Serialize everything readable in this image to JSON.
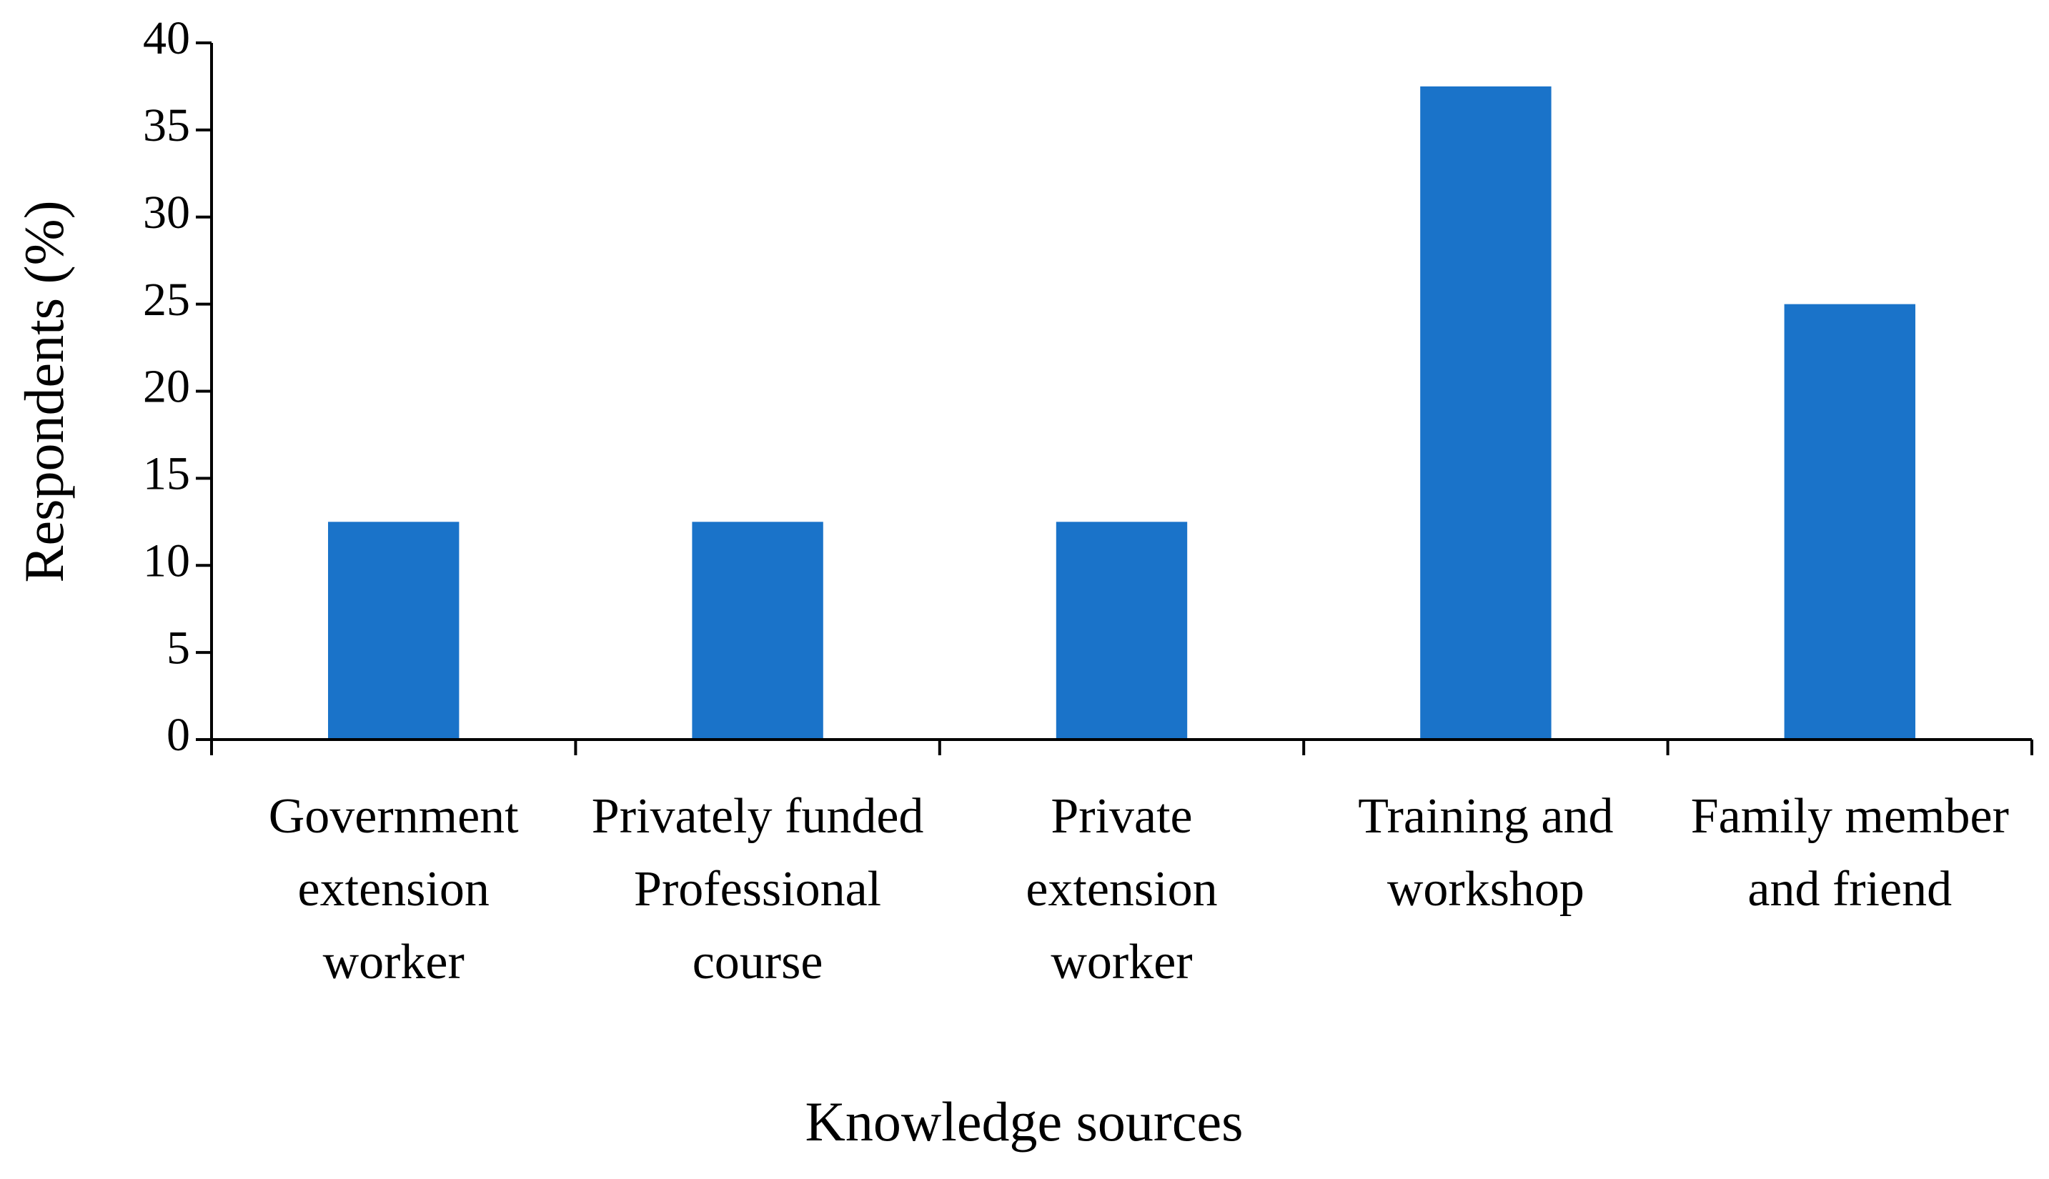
{
  "chart_data": {
    "type": "bar",
    "x_label": "Knowledge sources",
    "y_label": "Respondents (%)",
    "categories": [
      "Government extension worker",
      "Privately funded Professional course",
      "Private extension worker",
      "Training and workshop",
      "Family member and friend"
    ],
    "values": [
      12.5,
      12.5,
      12.5,
      37.5,
      25
    ],
    "color": "#1a73c9",
    "ylim": [
      0,
      40
    ],
    "yticks": [
      0,
      5,
      10,
      15,
      20,
      25,
      30,
      35,
      40
    ],
    "grid": false
  }
}
